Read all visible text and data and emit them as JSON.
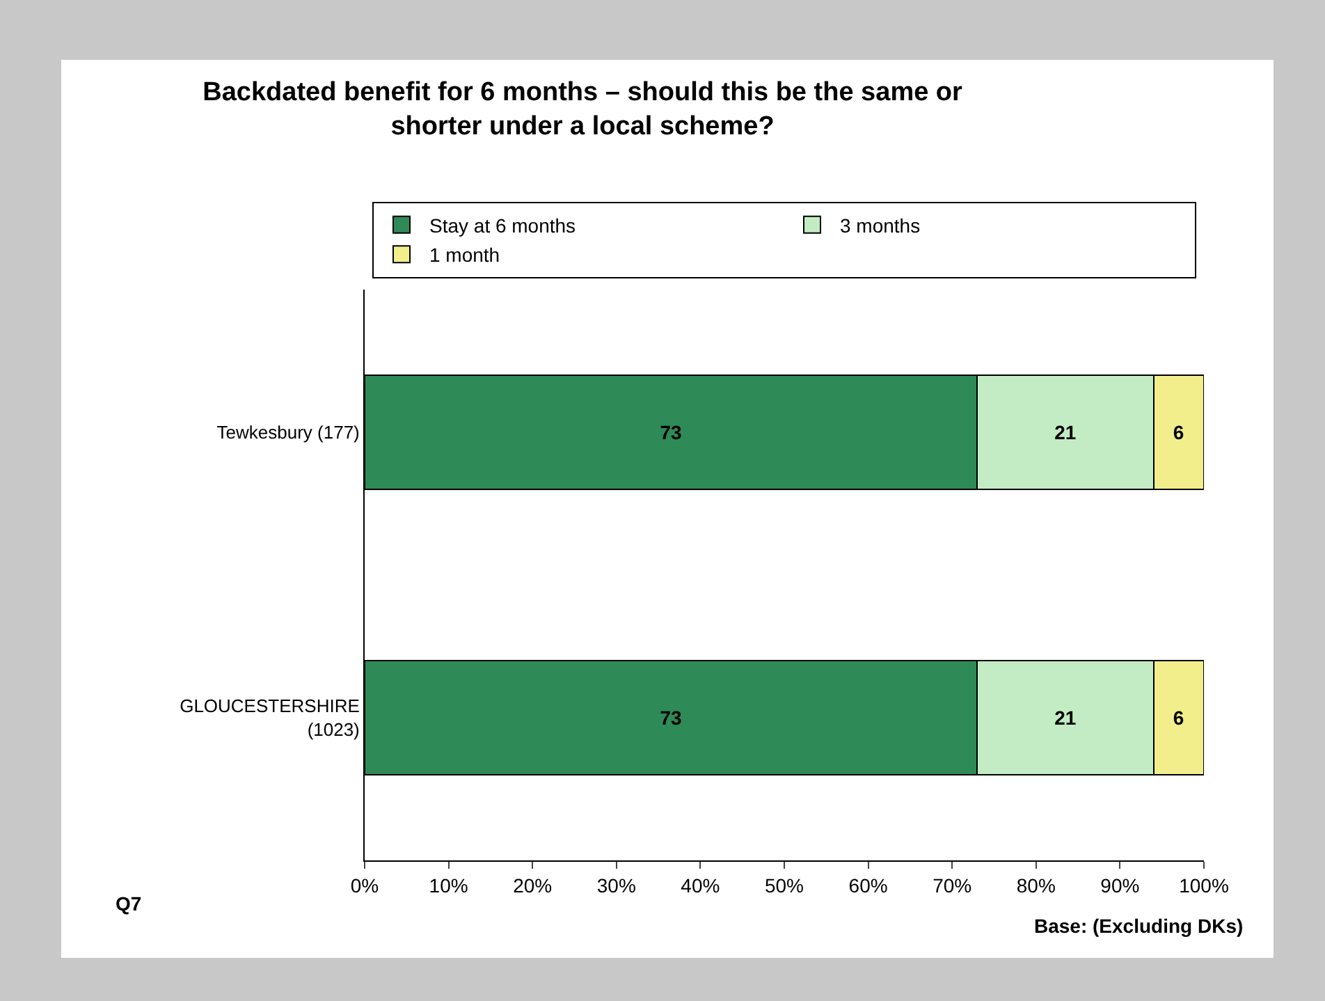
{
  "chart_data": {
    "type": "bar",
    "orientation": "horizontal",
    "stacked": true,
    "title": "Backdated benefit for 6 months – should this be the same or shorter under a local scheme?",
    "categories": [
      "Tewkesbury (177)",
      "GLOUCESTERSHIRE (1023)"
    ],
    "series": [
      {
        "name": "Stay at 6 months",
        "color": "#2e8b57",
        "values": [
          73,
          73
        ]
      },
      {
        "name": "3 months",
        "color": "#c4ecc4",
        "values": [
          21,
          21
        ]
      },
      {
        "name": "1 month",
        "color": "#f2ee8c",
        "values": [
          6,
          6
        ]
      }
    ],
    "xlim": [
      0,
      100
    ],
    "xticks": [
      {
        "value": 0,
        "label": "0%"
      },
      {
        "value": 10,
        "label": "10%"
      },
      {
        "value": 20,
        "label": "20%"
      },
      {
        "value": 30,
        "label": "30%"
      },
      {
        "value": 40,
        "label": "40%"
      },
      {
        "value": 50,
        "label": "50%"
      },
      {
        "value": 60,
        "label": "60%"
      },
      {
        "value": 70,
        "label": "70%"
      },
      {
        "value": 80,
        "label": "80%"
      },
      {
        "value": 90,
        "label": "90%"
      },
      {
        "value": 100,
        "label": "100%"
      }
    ],
    "data_labels": true,
    "grid": false,
    "legend": "top",
    "annotations": [
      "Q7",
      "Base: (Excluding DKs)"
    ]
  }
}
